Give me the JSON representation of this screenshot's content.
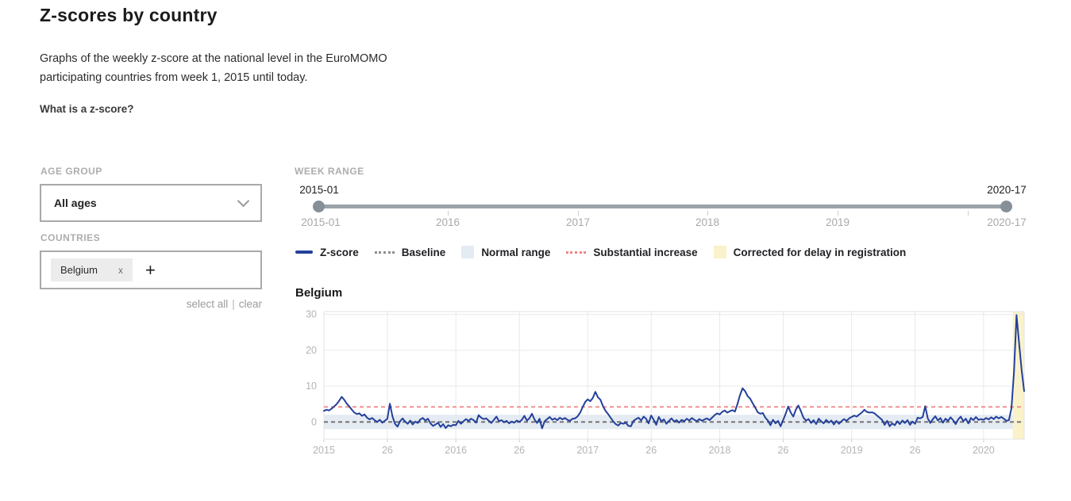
{
  "page": {
    "title": "Z-scores by country",
    "description": "Graphs of the weekly z-score at the national level in the EuroMOMO participating countries from week 1, 2015 until today.",
    "zscore_link": "What is a z-score?"
  },
  "filters": {
    "age_group": {
      "label": "AGE GROUP",
      "value": "All ages"
    },
    "countries": {
      "label": "COUNTRIES",
      "selected": [
        "Belgium"
      ],
      "remove_icon": "x",
      "add_icon": "+",
      "select_all": "select all",
      "divider": "|",
      "clear": "clear"
    }
  },
  "week_range": {
    "label": "WEEK RANGE",
    "start_value": "2015-01",
    "end_value": "2020-17",
    "axis_labels": [
      "2015-01",
      "2016",
      "2017",
      "2018",
      "2019",
      "2020-17"
    ]
  },
  "legend": [
    {
      "label": "Z-score",
      "type": "line",
      "color": "#24409a"
    },
    {
      "label": "Baseline",
      "type": "dotted",
      "color": "#8f8f91"
    },
    {
      "label": "Normal range",
      "type": "box",
      "color": "#e4ebf2"
    },
    {
      "label": "Substantial increase",
      "type": "dotted",
      "color": "#ef8484"
    },
    {
      "label": "Corrected for delay in registration",
      "type": "box",
      "color": "#faf2cb"
    }
  ],
  "chart_data": {
    "type": "line",
    "title": "Belgium",
    "x_unit": "ISO week, 2015-W01 to 2020-W17",
    "ylim": [
      -4.8,
      30.8
    ],
    "yticks": [
      0,
      10,
      20,
      30
    ],
    "xtick_labels": [
      "2015",
      "26",
      "2016",
      "26",
      "2017",
      "26",
      "2018",
      "26",
      "2019",
      "26",
      "2020"
    ],
    "xtick_indices": [
      0,
      25,
      52,
      77,
      104,
      129,
      156,
      181,
      208,
      233,
      260
    ],
    "baseline_y": 0,
    "substantial_increase_y": 4.2,
    "normal_range": [
      -2,
      2
    ],
    "corrected_band_start_index": 271.5,
    "grid": true,
    "colors": {
      "zscore": "#24409a",
      "baseline": "#6d6d6f",
      "substantial": "#f08a8a",
      "normal_range": "#e4ebf2",
      "corrected": "#faf2cb",
      "gridline": "#e9e9e9",
      "axis_text": "#b4b4b6"
    },
    "series": [
      {
        "name": "Z-score",
        "color": "#24409a",
        "values": [
          3.1,
          3.4,
          3.2,
          3.7,
          4.3,
          5.0,
          5.9,
          7.0,
          6.2,
          5.1,
          4.3,
          3.4,
          2.6,
          2.2,
          2.4,
          1.7,
          2.1,
          1.2,
          0.7,
          1.1,
          0.5,
          0.0,
          0.6,
          -0.2,
          0.3,
          0.9,
          5.1,
          1.6,
          -0.5,
          -1.3,
          0.2,
          1.0,
          0.1,
          -0.5,
          0.4,
          -0.7,
          0.1,
          -0.3,
          0.7,
          1.1,
          0.4,
          0.9,
          -0.4,
          -1.1,
          -0.7,
          -0.2,
          -1.4,
          -0.6,
          -1.7,
          -0.9,
          -1.2,
          -0.8,
          -0.9,
          0.3,
          -0.5,
          0.2,
          0.8,
          0.3,
          0.9,
          0.5,
          -0.2,
          1.9,
          1.2,
          0.8,
          1.0,
          0.3,
          -0.3,
          0.6,
          1.5,
          0.2,
          0.5,
          -0.1,
          0.3,
          -0.4,
          0.1,
          -0.2,
          0.4,
          0.0,
          0.6,
          1.7,
          0.4,
          1.0,
          2.3,
          0.7,
          -0.3,
          0.9,
          -1.8,
          0.2,
          0.8,
          1.4,
          0.6,
          1.0,
          0.5,
          1.2,
          0.7,
          1.1,
          0.6,
          0.3,
          0.9,
          1.0,
          1.6,
          2.6,
          4.2,
          5.6,
          6.3,
          5.8,
          6.7,
          8.4,
          6.9,
          6.2,
          4.4,
          3.1,
          2.2,
          1.2,
          0.2,
          -0.6,
          -1.0,
          -0.3,
          -0.5,
          -0.2,
          -1.1,
          -1.2,
          0.3,
          0.8,
          1.2,
          0.4,
          1.5,
          0.9,
          -0.4,
          1.8,
          0.6,
          -0.8,
          1.4,
          0.2,
          0.7,
          -0.5,
          0.3,
          1.0,
          0.1,
          0.5,
          -0.2,
          0.6,
          0.2,
          0.9,
          0.4,
          1.1,
          0.6,
          0.2,
          0.8,
          0.3,
          0.7,
          1.0,
          0.5,
          1.2,
          1.9,
          2.4,
          2.1,
          2.8,
          3.2,
          2.6,
          3.0,
          3.3,
          2.9,
          5.0,
          7.5,
          9.4,
          8.6,
          7.2,
          6.5,
          5.2,
          4.0,
          2.7,
          2.3,
          2.5,
          1.2,
          0.4,
          -0.9,
          0.6,
          -0.4,
          0.3,
          -1.2,
          0.5,
          2.3,
          4.3,
          2.6,
          1.5,
          3.4,
          4.6,
          3.0,
          1.2,
          0.4,
          0.8,
          -0.3,
          0.5,
          -0.6,
          0.9,
          0.2,
          -0.4,
          0.6,
          -0.2,
          0.4,
          -0.7,
          0.3,
          -0.5,
          0.2,
          0.8,
          0.3,
          1.0,
          1.4,
          1.8,
          1.5,
          2.1,
          2.6,
          3.4,
          2.8,
          2.6,
          2.7,
          2.4,
          1.8,
          1.2,
          0.6,
          -0.8,
          0.3,
          -1.2,
          -0.4,
          -0.9,
          0.2,
          -0.6,
          0.4,
          -0.3,
          0.5,
          -0.8,
          0.1,
          -0.5,
          1.2,
          1.0,
          1.4,
          4.4,
          1.0,
          -0.3,
          0.8,
          1.6,
          0.4,
          1.1,
          -0.2,
          0.9,
          0.3,
          1.3,
          0.5,
          -0.6,
          0.7,
          1.5,
          0.2,
          0.9,
          -0.4,
          1.1,
          0.5,
          1.4,
          0.6,
          0.8,
          0.6,
          1.1,
          0.7,
          1.3,
          0.8,
          1.5,
          1.0,
          1.4,
          0.9,
          0.3,
          0.5,
          3.8,
          14.0,
          29.8,
          22.0,
          14.5,
          8.6
        ]
      }
    ]
  }
}
